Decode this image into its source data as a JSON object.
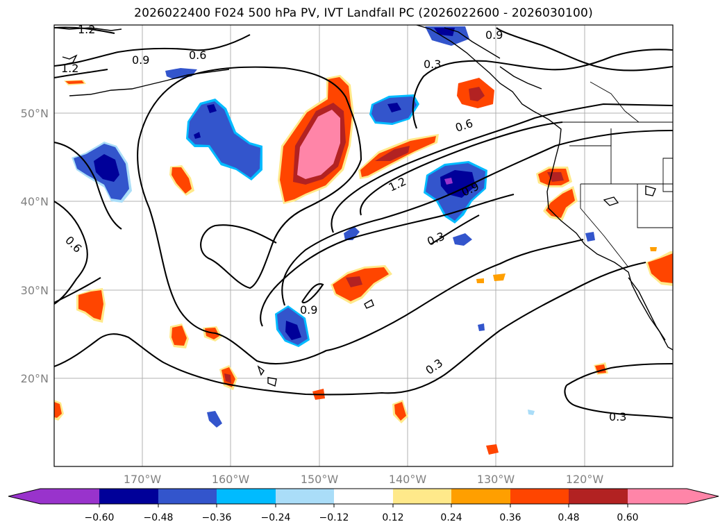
{
  "title": "2026022400 F024 500 hPa PV, IVT Landfall PC (2026022600 - 2026030100)",
  "axes": {
    "lat_labels": [
      "50°N",
      "40°N",
      "30°N",
      "20°N"
    ],
    "lon_labels": [
      "170°W",
      "160°W",
      "150°W",
      "140°W",
      "130°W",
      "120°W"
    ]
  },
  "contour_labels": [
    "1.2",
    "1.2",
    "0.9",
    "0.6",
    "0.9",
    "0.3",
    "0.6",
    "1.2",
    "0.9",
    "0.3",
    "0.6",
    "0.9",
    "0.3",
    "0.3"
  ],
  "colorbar": {
    "ticks": [
      "−0.60",
      "−0.48",
      "−0.36",
      "−0.24",
      "−0.12",
      "0.12",
      "0.24",
      "0.36",
      "0.48",
      "0.60"
    ],
    "colors": {
      "under": "#9933cc",
      "neg060": "#000099",
      "neg048": "#3355cc",
      "neg036": "#00bbff",
      "neg024": "#aaddf8",
      "neutral": "#ffffff",
      "pos012": "#ffe98a",
      "pos024": "#ff9f00",
      "pos036": "#ff4500",
      "pos048": "#b22222",
      "over": "#ff85a8"
    }
  }
}
